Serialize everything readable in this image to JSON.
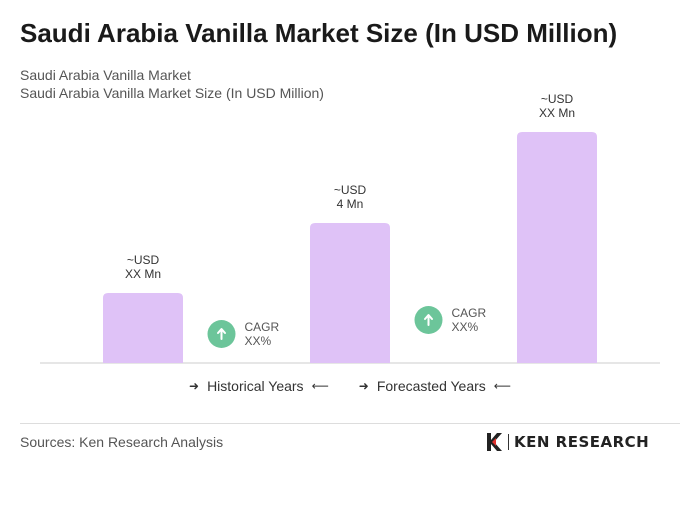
{
  "title": "Saudi Arabia Vanilla Market Size (In USD Million)",
  "subtitle_1": "Saudi Arabia Vanilla Market",
  "subtitle_2": "Saudi Arabia Vanilla Market Size (In USD Million)",
  "chart_data": {
    "type": "bar",
    "bars": [
      {
        "label_line1": "~USD",
        "label_line2": "XX Mn",
        "value": 1
      },
      {
        "label_line1": "~USD",
        "label_line2": "4 Mn",
        "value": 2
      },
      {
        "label_line1": "~USD",
        "label_line2": "XX Mn",
        "value": 3.3
      }
    ],
    "cagr_badges": [
      {
        "line1": "CAGR",
        "line2": "XX%",
        "between": [
          0,
          1
        ]
      },
      {
        "line1": "CAGR",
        "line2": "XX%",
        "between": [
          1,
          2
        ]
      }
    ],
    "bar_color": "#dfc2f7",
    "badge_color": "#6cc59a",
    "axis_color": "#cccccc",
    "grid": false
  },
  "legend": {
    "historical": "Historical Years",
    "forecasted": "Forecasted Years",
    "arrow_right": "➜",
    "arrow_left": "⟵"
  },
  "sources": "Sources: Ken Research Analysis",
  "brand": {
    "name": "KEN RESEARCH",
    "icon": "ken-logo-icon"
  }
}
